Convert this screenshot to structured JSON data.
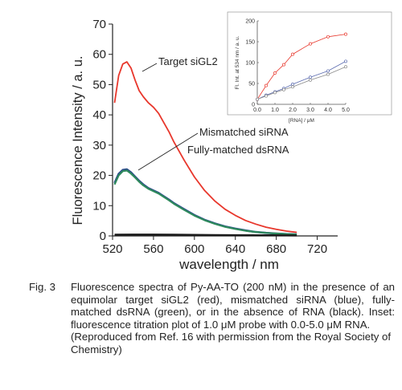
{
  "chart_data": [
    {
      "type": "line",
      "xlabel": "wavelength / nm",
      "ylabel": "Fluorescence Intensity / a. u.",
      "x_ticks": [
        "520",
        "560",
        "600",
        "640",
        "680",
        "720"
      ],
      "y_ticks": [
        "0",
        "10",
        "20",
        "30",
        "40",
        "50",
        "60",
        "70"
      ],
      "xlim": [
        520,
        740
      ],
      "ylim": [
        0,
        70
      ],
      "grid": false,
      "legend": "none (direct labels)",
      "annotations": [
        "Target siGL2",
        "Mismatched siRNA",
        "Fully-matched dsRNA"
      ],
      "series": [
        {
          "name": "Target siGL2",
          "color": "#e8372c",
          "x": [
            522,
            526,
            530,
            534,
            538,
            542,
            546,
            550,
            555,
            560,
            565,
            570,
            575,
            580,
            590,
            600,
            610,
            620,
            630,
            640,
            650,
            660,
            670,
            680,
            690,
            700
          ],
          "y": [
            44,
            53,
            56.8,
            57.5,
            55.5,
            51.5,
            48,
            46,
            44,
            42.5,
            40.5,
            37.5,
            34.5,
            31,
            25,
            19.5,
            15,
            11.5,
            8.8,
            6.8,
            5.1,
            3.9,
            2.9,
            2.2,
            1.6,
            1.2
          ]
        },
        {
          "name": "Mismatched siRNA",
          "color": "#2c4d8a",
          "x": [
            522,
            526,
            530,
            534,
            538,
            542,
            546,
            550,
            555,
            560,
            565,
            570,
            575,
            580,
            590,
            600,
            610,
            620,
            630,
            640,
            650,
            660,
            670,
            680,
            690,
            700
          ],
          "y": [
            17.5,
            20.5,
            21.8,
            22,
            21,
            19.6,
            18.2,
            17,
            15.8,
            15,
            14.2,
            13.1,
            12,
            10.8,
            8.8,
            6.9,
            5.3,
            4.1,
            3.1,
            2.4,
            1.8,
            1.3,
            1,
            0.8,
            0.6,
            0.5
          ]
        },
        {
          "name": "Fully-matched dsRNA",
          "color": "#2e8a5c",
          "x": [
            522,
            526,
            530,
            534,
            538,
            542,
            546,
            550,
            555,
            560,
            565,
            570,
            575,
            580,
            590,
            600,
            610,
            620,
            630,
            640,
            650,
            660,
            670,
            680,
            690,
            700
          ],
          "y": [
            17,
            20,
            21.4,
            21.6,
            20.6,
            19.3,
            17.9,
            16.7,
            15.6,
            14.8,
            14,
            12.9,
            11.8,
            10.6,
            8.6,
            6.7,
            5.2,
            4,
            3,
            2.3,
            1.7,
            1.3,
            1,
            0.8,
            0.6,
            0.5
          ]
        },
        {
          "name": "absence of RNA",
          "color": "#1b1b1b",
          "x": [
            522,
            540,
            560,
            580,
            600,
            620,
            640,
            660,
            680,
            700
          ],
          "y": [
            0.4,
            0.45,
            0.45,
            0.4,
            0.35,
            0.3,
            0.25,
            0.2,
            0.2,
            0.15
          ]
        }
      ]
    },
    {
      "type": "scatter",
      "xlabel": "[RNA] / μM",
      "ylabel": "Fl. Int. at 534 nm / a. u.",
      "x_ticks": [
        "0.0",
        "1.0",
        "2.0",
        "3.0",
        "4.0",
        "5.0"
      ],
      "y_ticks": [
        "0",
        "50",
        "100",
        "150",
        "200"
      ],
      "xlim": [
        0,
        5
      ],
      "ylim": [
        0,
        200
      ],
      "series": [
        {
          "name": "Target siGL2",
          "color": "#e8372c",
          "x": [
            0,
            0.5,
            1,
            1.5,
            2,
            3,
            4,
            5
          ],
          "y": [
            12,
            45,
            75,
            95,
            120,
            145,
            162,
            168
          ]
        },
        {
          "name": "Mismatched siRNA",
          "color": "#5b6bb0",
          "x": [
            0,
            0.5,
            1,
            1.5,
            2,
            3,
            4,
            5
          ],
          "y": [
            12,
            22,
            30,
            38,
            48,
            65,
            80,
            103
          ]
        },
        {
          "name": "Fully-matched dsRNA",
          "color": "#8a8a8a",
          "x": [
            0,
            0.5,
            1,
            1.5,
            2,
            3,
            4,
            5
          ],
          "y": [
            12,
            20,
            28,
            35,
            42,
            58,
            72,
            90
          ]
        }
      ]
    }
  ],
  "caption": {
    "label": "Fig. 3",
    "text": "Fluorescence spectra of Py-AA-TO (200 nM) in the presence of an equimolar target siGL2 (red), mismatched siRNA (blue), fully-matched dsRNA (green), or in the absence of RNA (black). Inset: fluorescence titration plot of 1.0 μM probe with 0.0-5.0 μM RNA.",
    "reference": "(Reproduced from Ref. 16 with permission from the Royal Society of Chemistry)"
  }
}
